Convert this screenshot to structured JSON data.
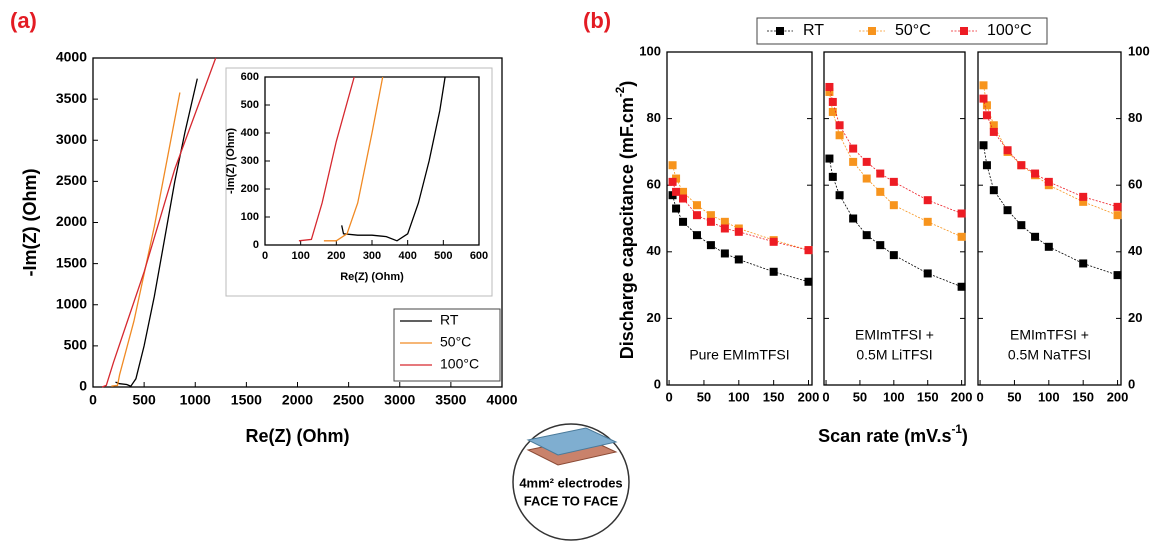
{
  "figure_labels": [
    "(a)",
    "(b)"
  ],
  "diagram": {
    "lines": [
      "4mm² electrodes",
      "FACE TO FACE"
    ]
  },
  "chart_data": [
    {
      "type": "line",
      "x_label": "Re(Z) (Ohm)",
      "y_label": "-Im(Z) (Ohm)",
      "xlim": [
        0,
        4000
      ],
      "ylim": [
        0,
        4000
      ],
      "xticks": [
        0,
        500,
        1000,
        1500,
        2000,
        2500,
        3000,
        3500,
        4000
      ],
      "yticks": [
        0,
        500,
        1000,
        1500,
        2000,
        2500,
        3000,
        3500,
        4000
      ],
      "legend": "lower right",
      "series": [
        {
          "name": "RT",
          "color": "#000000",
          "x": [
            220,
            260,
            330,
            370,
            420,
            500,
            600,
            700,
            800,
            900,
            1020
          ],
          "values": [
            60,
            40,
            30,
            10,
            100,
            500,
            1100,
            1800,
            2500,
            3100,
            3750
          ]
        },
        {
          "name": "50°C",
          "color": "#f08a24",
          "x": [
            180,
            240,
            260,
            400,
            600,
            850
          ],
          "values": [
            10,
            20,
            150,
            800,
            1950,
            3580
          ]
        },
        {
          "name": "100°C",
          "color": "#d6282f",
          "x": [
            90,
            130,
            200,
            500,
            800,
            1200
          ],
          "values": [
            0,
            20,
            300,
            1400,
            2650,
            4000
          ]
        }
      ]
    },
    {
      "type": "line",
      "x_label": "Re(Z) (Ohm)",
      "y_label": "-Im(Z) (Ohm)",
      "xlim": [
        0,
        600
      ],
      "ylim": [
        0,
        600
      ],
      "xticks": [
        0,
        100,
        200,
        300,
        400,
        500,
        600
      ],
      "yticks": [
        0,
        100,
        200,
        300,
        400,
        500,
        600
      ],
      "series": [
        {
          "color": "#000000",
          "x": [
            215,
            220,
            260,
            300,
            340,
            370,
            400,
            430,
            460,
            490,
            505
          ],
          "values": [
            70,
            40,
            35,
            35,
            30,
            15,
            40,
            150,
            300,
            480,
            600
          ]
        },
        {
          "color": "#f08a24",
          "x": [
            165,
            200,
            230,
            260,
            300,
            330
          ],
          "values": [
            15,
            15,
            40,
            150,
            400,
            600
          ]
        },
        {
          "color": "#d6282f",
          "x": [
            95,
            130,
            160,
            200,
            250
          ],
          "values": [
            15,
            20,
            150,
            370,
            600
          ]
        }
      ]
    },
    {
      "type": "scatter",
      "y_label": {
        "text": "Discharge capacitance (mF.cm",
        "sup": "-2",
        "tail": ")"
      },
      "x_label": {
        "text": "Scan rate (mV.s",
        "sup": "-1",
        "tail": ")"
      },
      "x": [
        5,
        10,
        20,
        40,
        60,
        80,
        100,
        150,
        200
      ],
      "xlim": [
        -3,
        205
      ],
      "ylim": [
        0,
        100
      ],
      "xticks": [
        0,
        50,
        100,
        150,
        200
      ],
      "yticks": [
        0,
        20,
        40,
        60,
        80,
        100
      ],
      "legend": "upper center",
      "series": [
        {
          "name": "RT",
          "color": "#000000"
        },
        {
          "name": "50°C",
          "color": "#f7941d"
        },
        {
          "name": "100°C",
          "color": "#ed1c24"
        }
      ],
      "panels": [
        {
          "annotation": [
            "Pure EMImTFSI"
          ],
          "values": [
            [
              57,
              53,
              49,
              45,
              42,
              39.5,
              37.7,
              34,
              31
            ],
            [
              66,
              62,
              58,
              54,
              51,
              49,
              47,
              43.5,
              40.5
            ],
            [
              61,
              58,
              56,
              51,
              49,
              47,
              46,
              43,
              40.5
            ]
          ]
        },
        {
          "annotation": [
            "EMImTFSI +",
            "0.5M LiTFSI"
          ],
          "values": [
            [
              68,
              62.5,
              57,
              50,
              45,
              42,
              39,
              33.5,
              29.5
            ],
            [
              88,
              82,
              75,
              67,
              62,
              58,
              54,
              49,
              44.5
            ],
            [
              89.5,
              85,
              78,
              71,
              67,
              63.5,
              61,
              55.5,
              51.5
            ]
          ]
        },
        {
          "annotation": [
            "EMImTFSI +",
            "0.5M NaTFSI"
          ],
          "values": [
            [
              72,
              66,
              58.5,
              52.5,
              48,
              44.5,
              41.5,
              36.5,
              33
            ],
            [
              90,
              84,
              78,
              70,
              66,
              63,
              60,
              55,
              51
            ],
            [
              86,
              81,
              76,
              70.5,
              66,
              63.5,
              61,
              56.5,
              53.5
            ]
          ]
        }
      ]
    }
  ]
}
